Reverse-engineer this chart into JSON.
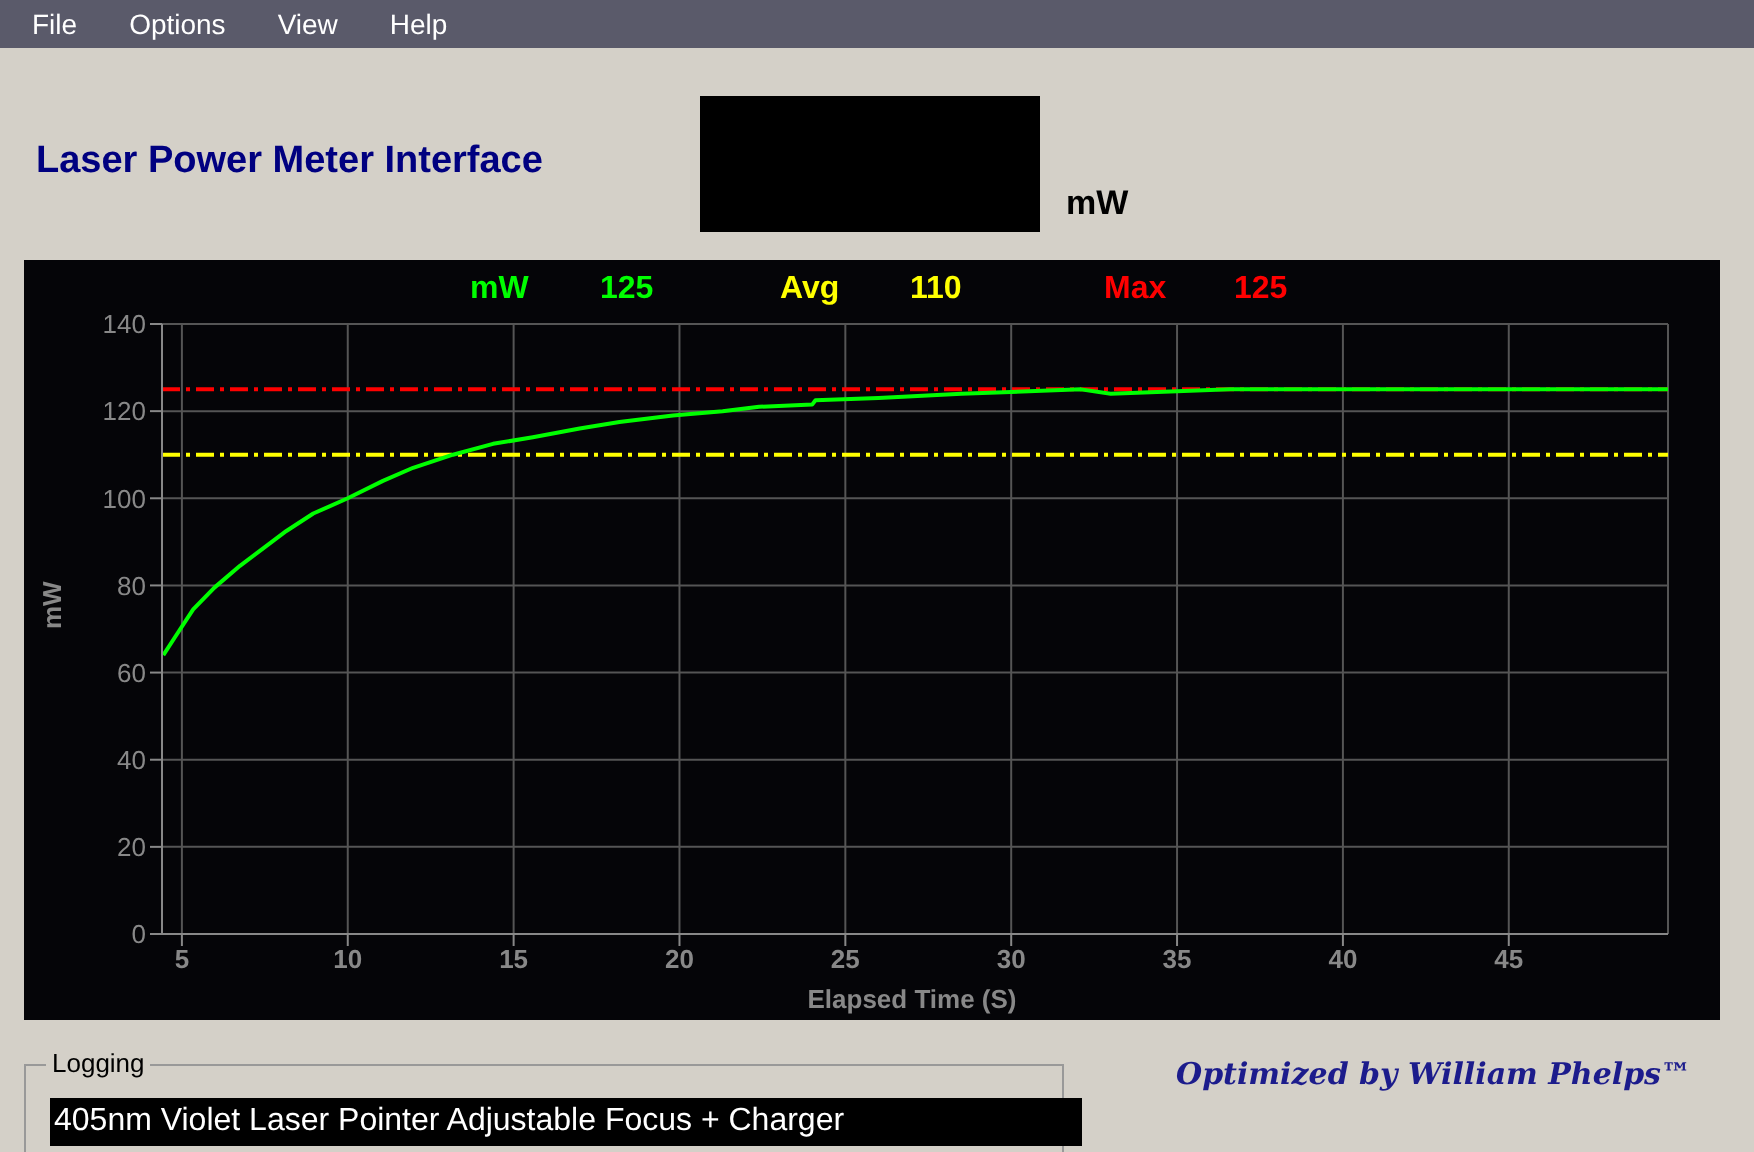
{
  "chart_data": {
    "type": "line",
    "title": "Laser Power Meter Interface",
    "xlabel": "Elapsed Time (S)",
    "ylabel": "mW",
    "annotations": [
      "File",
      "Options",
      "View",
      "Help",
      "mW",
      "125",
      "Logging",
      "405nm Violet Laser Pointer Adjustable Focus + Charger",
      "Optimized by William Phelps™",
      "110",
      "125"
    ],
    "series": [
      {
        "name": "mW",
        "color": "#00ff00",
        "x": [
          4.44,
          4.78,
          5.34,
          5.98,
          6.75,
          7.45,
          8.15,
          8.96,
          10.0,
          11.06,
          11.97,
          13.17,
          14.38,
          15.58,
          16.99,
          18.19,
          19.8,
          21.3,
          22.4,
          24.0,
          24.1,
          26.0,
          28.5,
          32.1,
          33.0,
          36.6,
          49.8
        ],
        "values": [
          64,
          68,
          74.5,
          79.5,
          84.5,
          88.5,
          92.5,
          96.5,
          100,
          104,
          107,
          110,
          112.5,
          114,
          116,
          117.5,
          119,
          120,
          121,
          121.5,
          122.5,
          123,
          124,
          125,
          124,
          125,
          125
        ]
      }
    ],
    "ref_lines": [
      {
        "axis": "y",
        "value": 110,
        "label": "Avg",
        "color": "#ffff00",
        "line_style": "dashed"
      },
      {
        "axis": "y",
        "value": 125,
        "label": "Max",
        "color": "#ff0000",
        "line_style": "dashed"
      }
    ],
    "xlim": [
      4.4,
      49.8
    ],
    "ylim": [
      0,
      140
    ],
    "xticks": [
      5,
      10,
      15,
      20,
      25,
      30,
      35,
      40,
      45
    ],
    "yticks": [
      0,
      20,
      40,
      60,
      80,
      100,
      120,
      140
    ],
    "grid": true,
    "legend": "top",
    "line_style": "solid",
    "marker": "none"
  }
}
